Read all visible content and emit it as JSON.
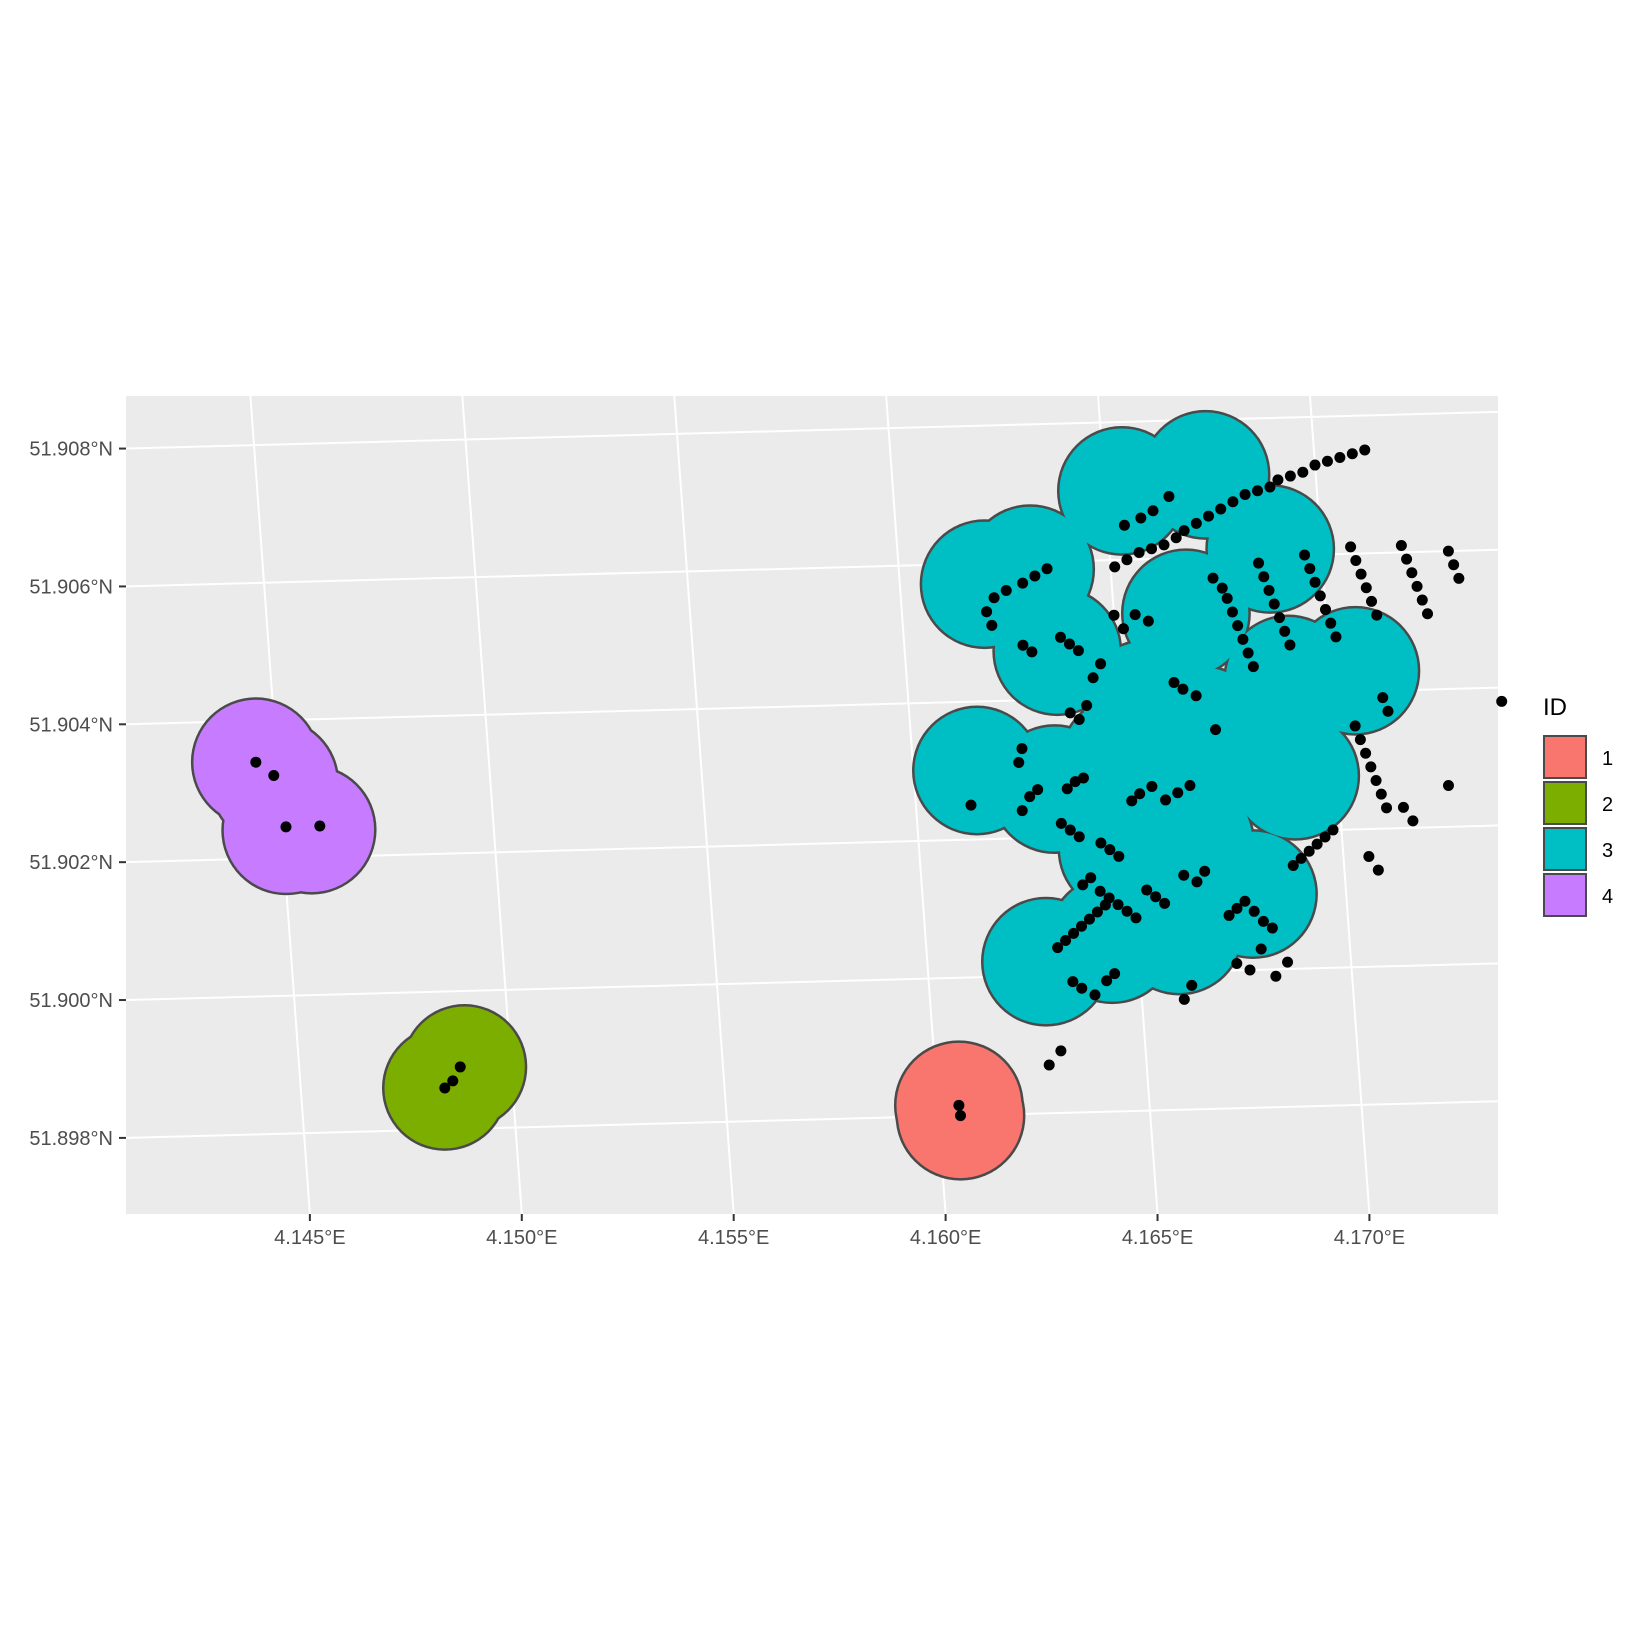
{
  "chart_data": {
    "type": "map",
    "title": "",
    "xlabel": "",
    "ylabel": "",
    "xlim": [
      4.1417,
      4.1738
    ],
    "ylim": [
      51.8966,
      51.9084
    ],
    "grid": true,
    "legend_position": "right",
    "legend": {
      "title": "ID",
      "entries": [
        {
          "label": "1",
          "color": "#F8766D"
        },
        {
          "label": "2",
          "color": "#7CAE00"
        },
        {
          "label": "3",
          "color": "#00BFC4"
        },
        {
          "label": "4",
          "color": "#C77CFF"
        }
      ]
    },
    "x_ticks": [
      {
        "value": 4.145,
        "label": "4.145°E"
      },
      {
        "value": 4.15,
        "label": "4.150°E"
      },
      {
        "value": 4.155,
        "label": "4.155°E"
      },
      {
        "value": 4.16,
        "label": "4.160°E"
      },
      {
        "value": 4.165,
        "label": "4.165°E"
      },
      {
        "value": 4.17,
        "label": "4.170°E"
      }
    ],
    "y_ticks": [
      {
        "value": 51.898,
        "label": "51.898°N"
      },
      {
        "value": 51.9,
        "label": "51.900°N"
      },
      {
        "value": 51.902,
        "label": "51.902°N"
      },
      {
        "value": 51.904,
        "label": "51.904°N"
      },
      {
        "value": 51.906,
        "label": "51.906°N"
      },
      {
        "value": 51.908,
        "label": "51.908°N"
      }
    ],
    "regions": [
      {
        "id": "1",
        "color": "#F8766D",
        "circles": [
          [
            4.1605,
            51.89815,
            0.0015
          ],
          [
            4.16052,
            51.898,
            0.0015
          ]
        ]
      },
      {
        "id": "2",
        "color": "#7CAE00",
        "circles": [
          [
            4.1484,
            51.8986,
            0.00145
          ],
          [
            4.1489,
            51.8989,
            0.00145
          ]
        ]
      },
      {
        "id": "3",
        "color": "#00BFC4",
        "circles": [
          [
            4.162,
            51.9057,
            0.0015
          ],
          [
            4.1631,
            51.9059,
            0.0015
          ],
          [
            4.1654,
            51.907,
            0.0015
          ],
          [
            4.1674,
            51.9072,
            0.0015
          ],
          [
            4.1688,
            51.9061,
            0.0015
          ],
          [
            4.1667,
            51.9052,
            0.0015
          ],
          [
            4.1636,
            51.9047,
            0.0015
          ],
          [
            4.1615,
            51.903,
            0.0015
          ],
          [
            4.1633,
            51.9027,
            0.0015
          ],
          [
            4.165,
            51.9031,
            0.0015
          ],
          [
            4.1669,
            51.9035,
            0.0015
          ],
          [
            4.1681,
            51.9032,
            0.0015
          ],
          [
            4.169,
            51.9042,
            0.0015
          ],
          [
            4.1706,
            51.9043,
            0.0015
          ],
          [
            4.1648,
            51.9018,
            0.0015
          ],
          [
            4.1664,
            51.9019,
            0.0015
          ],
          [
            4.1628,
            51.9002,
            0.0015
          ],
          [
            4.1644,
            51.9005,
            0.0015
          ],
          [
            4.166,
            51.9006,
            0.0015
          ],
          [
            4.1678,
            51.9011,
            0.0015
          ],
          [
            4.169,
            51.9028,
            0.0015
          ],
          [
            4.1656,
            51.9039,
            0.0015
          ]
        ]
      },
      {
        "id": "4",
        "color": "#C77CFF",
        "circles": [
          [
            4.1445,
            51.9034,
            0.0015
          ],
          [
            4.1449,
            51.9031,
            0.0015
          ],
          [
            4.1451,
            51.9024,
            0.0015
          ],
          [
            4.1457,
            51.9024,
            0.0015
          ]
        ]
      }
    ],
    "points": [
      [
        4.1605,
        51.89815
      ],
      [
        4.16052,
        51.898
      ],
      [
        4.1484,
        51.8986
      ],
      [
        4.1486,
        51.8987
      ],
      [
        4.1488,
        51.8989
      ],
      [
        4.1445,
        51.9034
      ],
      [
        4.1449,
        51.9032
      ],
      [
        4.1451,
        51.90245
      ],
      [
        4.1459,
        51.90245
      ],
      [
        4.162,
        51.9053
      ],
      [
        4.1622,
        51.9055
      ],
      [
        4.1625,
        51.9056
      ],
      [
        4.1629,
        51.9057
      ],
      [
        4.1632,
        51.9058
      ],
      [
        4.1635,
        51.9059
      ],
      [
        4.1621,
        51.9051
      ],
      [
        4.1651,
        51.9059
      ],
      [
        4.1654,
        51.906
      ],
      [
        4.1657,
        51.9061
      ],
      [
        4.166,
        51.90615
      ],
      [
        4.1663,
        51.9062
      ],
      [
        4.1666,
        51.9063
      ],
      [
        4.1668,
        51.9064
      ],
      [
        4.1671,
        51.9065
      ],
      [
        4.1674,
        51.9066
      ],
      [
        4.1677,
        51.9067
      ],
      [
        4.168,
        51.9068
      ],
      [
        4.1683,
        51.9069
      ],
      [
        4.1686,
        51.90695
      ],
      [
        4.1689,
        51.907
      ],
      [
        4.1691,
        51.9071
      ],
      [
        4.1694,
        51.90715
      ],
      [
        4.1697,
        51.9072
      ],
      [
        4.17,
        51.9073
      ],
      [
        4.1703,
        51.90735
      ],
      [
        4.1706,
        51.9074
      ],
      [
        4.1709,
        51.90745
      ],
      [
        4.1712,
        51.9075
      ],
      [
        4.1654,
        51.9065
      ],
      [
        4.1658,
        51.9066
      ],
      [
        4.1661,
        51.9067
      ],
      [
        4.1665,
        51.9069
      ],
      [
        4.165,
        51.9052
      ],
      [
        4.1652,
        51.905
      ],
      [
        4.1655,
        51.9052
      ],
      [
        4.1658,
        51.9051
      ],
      [
        4.1644,
        51.9043
      ],
      [
        4.1646,
        51.9045
      ],
      [
        4.1674,
        51.9057
      ],
      [
        4.1676,
        51.90555
      ],
      [
        4.1677,
        51.9054
      ],
      [
        4.1678,
        51.9052
      ],
      [
        4.1679,
        51.905
      ],
      [
        4.168,
        51.9048
      ],
      [
        4.1681,
        51.9046
      ],
      [
        4.1682,
        51.9044
      ],
      [
        4.1685,
        51.9059
      ],
      [
        4.1686,
        51.9057
      ],
      [
        4.1687,
        51.9055
      ],
      [
        4.1688,
        51.9053
      ],
      [
        4.1689,
        51.9051
      ],
      [
        4.169,
        51.9049
      ],
      [
        4.1691,
        51.9047
      ],
      [
        4.1696,
        51.906
      ],
      [
        4.1697,
        51.9058
      ],
      [
        4.1698,
        51.9056
      ],
      [
        4.1699,
        51.9054
      ],
      [
        4.17,
        51.9052
      ],
      [
        4.1701,
        51.905
      ],
      [
        4.1702,
        51.9048
      ],
      [
        4.1707,
        51.9061
      ],
      [
        4.1708,
        51.9059
      ],
      [
        4.1709,
        51.9057
      ],
      [
        4.171,
        51.9055
      ],
      [
        4.1711,
        51.9053
      ],
      [
        4.1712,
        51.9051
      ],
      [
        4.1719,
        51.9061
      ],
      [
        4.172,
        51.9059
      ],
      [
        4.1721,
        51.9057
      ],
      [
        4.1722,
        51.9055
      ],
      [
        4.1723,
        51.9053
      ],
      [
        4.1724,
        51.9051
      ],
      [
        4.173,
        51.906
      ],
      [
        4.1731,
        51.9058
      ],
      [
        4.1732,
        51.9056
      ],
      [
        4.1628,
        51.9048
      ],
      [
        4.163,
        51.9047
      ],
      [
        4.1637,
        51.9049
      ],
      [
        4.1639,
        51.9048
      ],
      [
        4.1641,
        51.9047
      ],
      [
        4.1638,
        51.9038
      ],
      [
        4.164,
        51.9037
      ],
      [
        4.1642,
        51.9039
      ],
      [
        4.1663,
        51.9042
      ],
      [
        4.1665,
        51.9041
      ],
      [
        4.1668,
        51.904
      ],
      [
        4.1672,
        51.9035
      ],
      [
        4.1625,
        51.9031
      ],
      [
        4.1626,
        51.9033
      ],
      [
        4.1613,
        51.9025
      ],
      [
        4.1625,
        51.9024
      ],
      [
        4.1627,
        51.9026
      ],
      [
        4.1629,
        51.9027
      ],
      [
        4.1636,
        51.9027
      ],
      [
        4.1638,
        51.9028
      ],
      [
        4.164,
        51.90285
      ],
      [
        4.1634,
        51.9022
      ],
      [
        4.1636,
        51.9021
      ],
      [
        4.1638,
        51.902
      ],
      [
        4.1643,
        51.9019
      ],
      [
        4.1645,
        51.9018
      ],
      [
        4.1647,
        51.9017
      ],
      [
        4.1651,
        51.9025
      ],
      [
        4.1653,
        51.9026
      ],
      [
        4.1656,
        51.9027
      ],
      [
        4.1659,
        51.9025
      ],
      [
        4.1662,
        51.9026
      ],
      [
        4.1665,
        51.9027
      ],
      [
        4.1638,
        51.9013
      ],
      [
        4.164,
        51.9014
      ],
      [
        4.1642,
        51.9012
      ],
      [
        4.1644,
        51.9011
      ],
      [
        4.1646,
        51.901
      ],
      [
        4.1648,
        51.9009
      ],
      [
        4.165,
        51.9008
      ],
      [
        4.1653,
        51.9012
      ],
      [
        4.1655,
        51.9011
      ],
      [
        4.1657,
        51.901
      ],
      [
        4.1662,
        51.9014
      ],
      [
        4.1665,
        51.9013
      ],
      [
        4.1667,
        51.90145
      ],
      [
        4.1672,
        51.9008
      ],
      [
        4.1674,
        51.9009
      ],
      [
        4.1676,
        51.901
      ],
      [
        4.1678,
        51.90085
      ],
      [
        4.168,
        51.9007
      ],
      [
        4.1682,
        51.9006
      ],
      [
        4.1688,
        51.9015
      ],
      [
        4.169,
        51.9016
      ],
      [
        4.1692,
        51.9017
      ],
      [
        4.1694,
        51.9018
      ],
      [
        4.1696,
        51.9019
      ],
      [
        4.1698,
        51.902
      ],
      [
        4.1705,
        51.9035
      ],
      [
        4.1706,
        51.9033
      ],
      [
        4.1707,
        51.9031
      ],
      [
        4.1708,
        51.9029
      ],
      [
        4.1709,
        51.9027
      ],
      [
        4.171,
        51.9025
      ],
      [
        4.1711,
        51.9023
      ],
      [
        4.1712,
        51.9039
      ],
      [
        4.1713,
        51.9037
      ],
      [
        4.1706,
        51.9016
      ],
      [
        4.1708,
        51.9014
      ],
      [
        4.1715,
        51.9023
      ],
      [
        4.1717,
        51.9021
      ],
      [
        4.1726,
        51.9026
      ],
      [
        4.174,
        51.9038
      ],
      [
        4.1631,
        51.9004
      ],
      [
        4.1633,
        51.9005
      ],
      [
        4.1635,
        51.9006
      ],
      [
        4.1637,
        51.9007
      ],
      [
        4.1639,
        51.9008
      ],
      [
        4.1641,
        51.9009
      ],
      [
        4.1643,
        51.901
      ],
      [
        4.1634,
        51.8999
      ],
      [
        4.1636,
        51.8998
      ],
      [
        4.1639,
        51.8997
      ],
      [
        4.1642,
        51.8999
      ],
      [
        4.1644,
        51.9
      ],
      [
        4.1627,
        51.8987
      ],
      [
        4.163,
        51.8989
      ],
      [
        4.166,
        51.8996
      ],
      [
        4.1662,
        51.8998
      ],
      [
        4.1673,
        51.9001
      ],
      [
        4.1676,
        51.9
      ],
      [
        4.1679,
        51.9003
      ],
      [
        4.1682,
        51.8999
      ],
      [
        4.1685,
        51.9001
      ]
    ]
  }
}
